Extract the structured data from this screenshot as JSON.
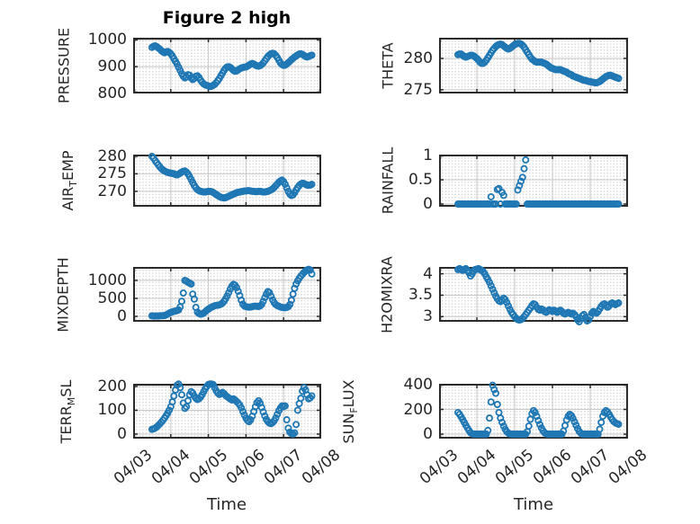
{
  "figure": {
    "title": "Figure 2 high",
    "xlabel": "Time",
    "xtick_labels": [
      "04/03",
      "04/04",
      "04/05",
      "04/06",
      "04/07",
      "04/08"
    ],
    "xlim_days": [
      0,
      5
    ],
    "colors": {
      "marker": "#1f77b4",
      "frame": "#2b2b2b",
      "major_grid": "#c9c9c9",
      "minor_dots": "#d9d9d9",
      "text": "#262626"
    }
  },
  "chart_data": [
    {
      "name": "pressure",
      "type": "scatter",
      "ylabel": "PRESSURE",
      "ylabel_parts": [
        {
          "text": "PRESSURE"
        }
      ],
      "yticks": [
        800,
        900,
        1000
      ],
      "ylim": [
        800,
        1008
      ],
      "t0_days": 0.5,
      "dt_days": 0.0416667,
      "values": [
        972,
        976,
        978,
        975,
        970,
        966,
        960,
        955,
        952,
        955,
        957,
        953,
        948,
        940,
        930,
        920,
        910,
        898,
        886,
        874,
        864,
        858,
        862,
        870,
        868,
        858,
        852,
        856,
        864,
        866,
        860,
        850,
        842,
        836,
        832,
        830,
        828,
        826,
        827,
        830,
        834,
        840,
        848,
        856,
        866,
        876,
        886,
        894,
        899,
        900,
        897,
        892,
        886,
        883,
        884,
        888,
        892,
        895,
        897,
        898,
        899,
        902,
        906,
        910,
        912,
        910,
        906,
        903,
        902,
        904,
        908,
        914,
        922,
        930,
        938,
        944,
        948,
        950,
        948,
        942,
        934,
        924,
        914,
        908,
        905,
        906,
        910,
        915,
        920,
        926,
        931,
        936,
        940,
        944,
        947,
        948,
        946,
        942,
        938,
        936,
        938,
        941,
        943
      ]
    },
    {
      "name": "theta",
      "type": "scatter",
      "ylabel": "THETA",
      "ylabel_parts": [
        {
          "text": "THETA"
        }
      ],
      "yticks": [
        275,
        280
      ],
      "ylim": [
        274.4,
        283.3
      ],
      "t0_days": 0.5,
      "dt_days": 0.0416667,
      "values": [
        280.6,
        280.7,
        280.7,
        280.5,
        280.3,
        280.2,
        280.3,
        280.4,
        280.5,
        280.5,
        280.4,
        280.2,
        280.0,
        279.7,
        279.4,
        279.2,
        279.2,
        279.4,
        279.7,
        280.1,
        280.5,
        280.9,
        281.3,
        281.6,
        281.9,
        282.1,
        282.2,
        282.3,
        282.2,
        282.0,
        281.8,
        281.6,
        281.5,
        281.6,
        281.8,
        282.0,
        282.2,
        282.3,
        282.4,
        282.4,
        282.3,
        282.1,
        281.8,
        281.4,
        281.0,
        280.6,
        280.2,
        279.9,
        279.7,
        279.5,
        279.4,
        279.4,
        279.4,
        279.4,
        279.3,
        279.2,
        279.1,
        278.9,
        278.7,
        278.5,
        278.4,
        278.3,
        278.2,
        278.2,
        278.2,
        278.2,
        278.1,
        278.0,
        277.9,
        277.8,
        277.6,
        277.5,
        277.4,
        277.2,
        277.1,
        277.0,
        276.9,
        276.8,
        276.7,
        276.6,
        276.5,
        276.5,
        276.4,
        276.3,
        276.3,
        276.2,
        276.2,
        276.1,
        276.1,
        276.2,
        276.3,
        276.5,
        276.7,
        276.9,
        277.1,
        277.2,
        277.3,
        277.3,
        277.2,
        277.1,
        277.0,
        276.9,
        276.8
      ]
    },
    {
      "name": "air-temp",
      "type": "scatter",
      "ylabel": "AIR_TEMP",
      "ylabel_parts": [
        {
          "text": "AIR"
        },
        {
          "text": "T",
          "subscript": true
        },
        {
          "text": "EMP"
        }
      ],
      "yticks": [
        270,
        275,
        280
      ],
      "ylim": [
        265.6,
        280.5
      ],
      "t0_days": 0.5,
      "dt_days": 0.0416667,
      "values": [
        280.0,
        279.5,
        278.8,
        278.2,
        277.6,
        277.0,
        276.5,
        276.1,
        275.8,
        275.6,
        275.4,
        275.3,
        275.2,
        275.1,
        275.0,
        274.8,
        274.7,
        274.9,
        275.2,
        275.5,
        275.7,
        275.8,
        275.5,
        275.0,
        274.2,
        273.4,
        272.5,
        271.7,
        271.0,
        270.5,
        270.2,
        270.0,
        269.9,
        269.8,
        269.8,
        269.9,
        270.0,
        270.0,
        269.9,
        269.7,
        269.4,
        269.1,
        268.8,
        268.5,
        268.3,
        268.2,
        268.1,
        268.2,
        268.4,
        268.6,
        268.8,
        269.0,
        269.2,
        269.4,
        269.6,
        269.7,
        269.8,
        269.9,
        270.0,
        270.1,
        270.1,
        270.2,
        270.2,
        270.1,
        270.0,
        270.0,
        269.9,
        269.9,
        270.0,
        270.0,
        269.9,
        269.8,
        269.8,
        269.9,
        270.0,
        270.2,
        270.4,
        270.7,
        271.1,
        271.6,
        272.1,
        272.6,
        273.0,
        273.2,
        272.8,
        272.0,
        271.0,
        270.0,
        269.2,
        268.8,
        269.0,
        269.6,
        270.4,
        271.1,
        271.7,
        272.1,
        272.3,
        272.2,
        272.0,
        271.8,
        271.7,
        271.8,
        272.0
      ]
    },
    {
      "name": "rainfall",
      "type": "scatter",
      "ylabel": "RAINFALL",
      "ylabel_parts": [
        {
          "text": "RAINFALL"
        }
      ],
      "yticks": [
        0,
        0.5,
        1
      ],
      "ylim": [
        -0.055,
        1.02
      ],
      "t0_days": 0.5,
      "dt_days": 0.0416667,
      "values": [
        0,
        0,
        0,
        0,
        0,
        0,
        0,
        0,
        0,
        0,
        0,
        0,
        0,
        0,
        0,
        0,
        0,
        0,
        0,
        0,
        0,
        0.15,
        0,
        0,
        0,
        0.3,
        0.32,
        0,
        0.24,
        0.18,
        0,
        0,
        0,
        0,
        0,
        0,
        0,
        0,
        0.29,
        0.38,
        0.47,
        0.55,
        0.73,
        0.91,
        0,
        0,
        0,
        0,
        0,
        0,
        0,
        0,
        0,
        0,
        0,
        0,
        0,
        0,
        0,
        0,
        0,
        0,
        0,
        0,
        0,
        0,
        0,
        0,
        0,
        0,
        0,
        0,
        0,
        0,
        0,
        0,
        0,
        0,
        0,
        0,
        0,
        0,
        0,
        0,
        0,
        0,
        0,
        0,
        0,
        0,
        0,
        0,
        0,
        0,
        0,
        0,
        0,
        0,
        0,
        0,
        0,
        0,
        0
      ]
    },
    {
      "name": "mixdepth",
      "type": "scatter",
      "ylabel": "MIXDEPTH",
      "ylabel_parts": [
        {
          "text": "MIXDEPTH"
        }
      ],
      "yticks": [
        0,
        500,
        1000
      ],
      "ylim": [
        -150,
        1375
      ],
      "t0_days": 0.5,
      "dt_days": 0.0416667,
      "values": [
        15,
        10,
        8,
        12,
        10,
        15,
        20,
        18,
        25,
        40,
        60,
        90,
        110,
        125,
        140,
        150,
        160,
        180,
        260,
        420,
        650,
        1000,
        980,
        950,
        925,
        900,
        620,
        480,
        250,
        120,
        80,
        60,
        70,
        90,
        130,
        170,
        200,
        230,
        255,
        275,
        295,
        305,
        310,
        320,
        340,
        370,
        420,
        490,
        570,
        660,
        760,
        840,
        890,
        870,
        800,
        700,
        580,
        450,
        340,
        290,
        270,
        260,
        255,
        260,
        270,
        280,
        285,
        280,
        275,
        290,
        330,
        420,
        520,
        620,
        690,
        660,
        560,
        460,
        380,
        330,
        300,
        280,
        260,
        250,
        245,
        240,
        250,
        270,
        330,
        450,
        620,
        780,
        900,
        990,
        1060,
        1120,
        1170,
        1220,
        1260,
        1290,
        1310,
        1290,
        1180
      ]
    },
    {
      "name": "h2omixra",
      "type": "scatter",
      "ylabel": "H2OMIXRA",
      "ylabel_parts": [
        {
          "text": "H2OMIXRA"
        }
      ],
      "yticks": [
        3,
        3.5,
        4
      ],
      "ylim": [
        2.88,
        4.16
      ],
      "t0_days": 0.5,
      "dt_days": 0.0416667,
      "values": [
        4.1,
        4.12,
        4.1,
        4.08,
        4.1,
        4.12,
        4.08,
        4.02,
        3.95,
        4.0,
        4.07,
        4.1,
        4.11,
        4.12,
        4.1,
        4.08,
        4.05,
        4.0,
        3.93,
        3.87,
        3.8,
        3.72,
        3.64,
        3.56,
        3.48,
        3.42,
        3.37,
        3.35,
        3.38,
        3.43,
        3.4,
        3.33,
        3.25,
        3.17,
        3.1,
        3.05,
        3.0,
        2.96,
        2.93,
        2.92,
        2.93,
        2.96,
        3.0,
        3.05,
        3.1,
        3.15,
        3.2,
        3.26,
        3.3,
        3.28,
        3.22,
        3.17,
        3.15,
        3.18,
        3.16,
        3.12,
        3.1,
        3.13,
        3.16,
        3.14,
        3.12,
        3.15,
        3.13,
        3.1,
        3.12,
        3.15,
        3.12,
        3.08,
        3.06,
        3.08,
        3.1,
        3.08,
        3.06,
        3.08,
        3.05,
        3.0,
        2.92,
        2.88,
        2.95,
        3.02,
        3.05,
        2.98,
        2.9,
        2.92,
        3.0,
        3.08,
        3.12,
        3.1,
        3.08,
        3.12,
        3.18,
        3.24,
        3.28,
        3.3,
        3.26,
        3.22,
        3.25,
        3.3,
        3.32,
        3.3,
        3.28,
        3.3,
        3.32
      ]
    },
    {
      "name": "terr-msl",
      "type": "scatter",
      "ylabel": "TERR_MSL",
      "ylabel_parts": [
        {
          "text": "TERR"
        },
        {
          "text": "M",
          "subscript": true
        },
        {
          "text": "SL"
        }
      ],
      "yticks": [
        0,
        100,
        200
      ],
      "ylim": [
        -19,
        211
      ],
      "t0_days": 0.5,
      "dt_days": 0.0416667,
      "values": [
        20,
        22,
        25,
        30,
        36,
        43,
        50,
        58,
        67,
        77,
        88,
        100,
        115,
        135,
        160,
        185,
        205,
        210,
        195,
        165,
        130,
        108,
        115,
        140,
        165,
        178,
        172,
        160,
        150,
        145,
        148,
        155,
        165,
        178,
        190,
        200,
        208,
        210,
        210,
        208,
        195,
        182,
        172,
        166,
        170,
        175,
        170,
        162,
        157,
        152,
        147,
        143,
        148,
        143,
        137,
        130,
        122,
        110,
        95,
        80,
        67,
        57,
        52,
        60,
        75,
        95,
        115,
        132,
        140,
        130,
        112,
        93,
        76,
        62,
        52,
        46,
        44,
        48,
        56,
        68,
        83,
        98,
        110,
        118,
        115,
        118,
        60,
        25,
        8,
        2,
        0,
        5,
        40,
        100,
        128,
        150,
        180,
        195,
        185,
        165,
        148,
        152,
        160
      ]
    },
    {
      "name": "sun-flux",
      "type": "scatter",
      "ylabel": "SUN_FLUX",
      "ylabel_parts": [
        {
          "text": "SUN"
        },
        {
          "text": "F",
          "subscript": true
        },
        {
          "text": "LUX"
        }
      ],
      "yticks": [
        0,
        200,
        400
      ],
      "ylim": [
        -36,
        407
      ],
      "t0_days": 0.5,
      "dt_days": 0.0416667,
      "values": [
        175,
        160,
        140,
        118,
        95,
        72,
        50,
        30,
        12,
        3,
        0,
        0,
        0,
        0,
        0,
        0,
        0,
        0,
        0,
        30,
        130,
        260,
        395,
        360,
        330,
        240,
        175,
        130,
        95,
        65,
        40,
        20,
        8,
        2,
        0,
        0,
        0,
        0,
        0,
        0,
        0,
        0,
        0,
        0,
        20,
        65,
        120,
        165,
        190,
        175,
        145,
        110,
        78,
        50,
        28,
        12,
        3,
        0,
        0,
        0,
        0,
        0,
        0,
        0,
        0,
        0,
        0,
        25,
        70,
        115,
        145,
        160,
        150,
        128,
        100,
        72,
        45,
        22,
        8,
        0,
        0,
        0,
        0,
        0,
        0,
        0,
        0,
        0,
        0,
        0,
        40,
        95,
        145,
        175,
        190,
        180,
        160,
        138,
        118,
        102,
        92,
        85,
        80
      ]
    }
  ]
}
